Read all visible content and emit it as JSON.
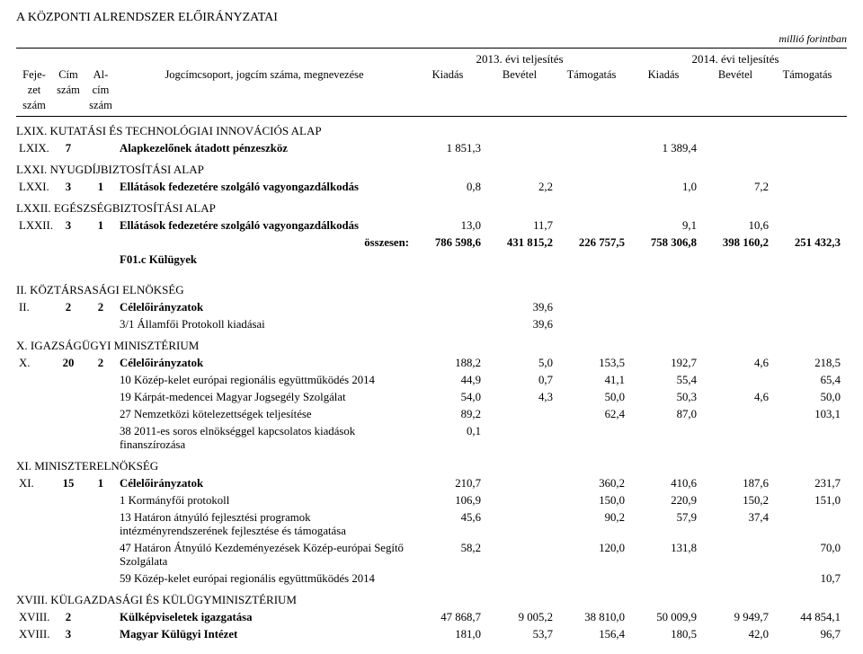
{
  "page_title": "A KÖZPONTI ALRENDSZER ELŐIRÁNYZATAI",
  "unit_label": "millió forintban",
  "header": {
    "col1a": "Feje-",
    "col1b": "zet",
    "col1c": "szám",
    "col2a": "Cím",
    "col2b": "szám",
    "col3a": "Al-",
    "col3b": "cím",
    "col3c": "szám",
    "center": "Jogcímcsoport, jogcím száma, megnevezése",
    "year1": "2013. évi teljesítés",
    "year2": "2014. évi teljesítés",
    "sub_kiadas": "Kiadás",
    "sub_bevetel": "Bevétel",
    "sub_tamogatas": "Támogatás"
  },
  "sections": {
    "lxix": "LXIX. KUTATÁSI ÉS TECHNOLÓGIAI INNOVÁCIÓS ALAP",
    "lxxi": "LXXI. NYUGDÍJBIZTOSÍTÁSI ALAP",
    "lxxii": "LXXII. EGÉSZSÉGBIZTOSÍTÁSI ALAP",
    "ii": "II. KÖZTÁRSASÁGI ELNÖKSÉG",
    "x": "X. IGAZSÁGÜGYI MINISZTÉRIUM",
    "xi": "XI. MINISZTERELNÖKSÉG",
    "xviii": "XVIII. KÜLGAZDASÁGI ÉS KÜLÜGYMINISZTÉRIUM",
    "f01c": "F01.c Külügyek"
  },
  "labels": {
    "osszesen": "összesen:"
  },
  "rows": [
    {
      "c1": "LXIX.",
      "c2": "7",
      "c3": "",
      "name": "Alapkezelőnek átadott pénzeszköz",
      "v": [
        "1 851,3",
        "",
        "",
        "1 389,4",
        "",
        ""
      ],
      "bold": true
    },
    {
      "c1": "LXXI.",
      "c2": "3",
      "c3": "1",
      "name": "Ellátások fedezetére szolgáló vagyongazdálkodás",
      "v": [
        "0,8",
        "2,2",
        "",
        "1,0",
        "7,2",
        ""
      ],
      "bold": true
    },
    {
      "c1": "LXXII.",
      "c2": "3",
      "c3": "1",
      "name": "Ellátások fedezetére szolgáló vagyongazdálkodás",
      "v": [
        "13,0",
        "11,7",
        "",
        "9,1",
        "10,6",
        ""
      ],
      "bold": true
    },
    {
      "c1": "",
      "c2": "",
      "c3": "",
      "name": "",
      "v": [
        "786 598,6",
        "431 815,2",
        "226 757,5",
        "758 306,8",
        "398 160,2",
        "251 432,3"
      ],
      "sum": true
    },
    {
      "c1": "II.",
      "c2": "2",
      "c3": "2",
      "name": "Célelőirányzatok",
      "v": [
        "",
        "39,6",
        "",
        "",
        "",
        ""
      ],
      "bold": true
    },
    {
      "c1": "",
      "c2": "",
      "c3": "",
      "name": "3/1 Államfői Protokoll kiadásai",
      "v": [
        "",
        "39,6",
        "",
        "",
        "",
        ""
      ]
    },
    {
      "c1": "X.",
      "c2": "20",
      "c3": "2",
      "name": "Célelőirányzatok",
      "v": [
        "188,2",
        "5,0",
        "153,5",
        "192,7",
        "4,6",
        "218,5"
      ],
      "bold": true
    },
    {
      "c1": "",
      "c2": "",
      "c3": "",
      "name": "10 Közép-kelet európai regionális együttműködés 2014",
      "v": [
        "44,9",
        "0,7",
        "41,1",
        "55,4",
        "",
        "65,4"
      ]
    },
    {
      "c1": "",
      "c2": "",
      "c3": "",
      "name": "19 Kárpát-medencei Magyar Jogsegély Szolgálat",
      "v": [
        "54,0",
        "4,3",
        "50,0",
        "50,3",
        "4,6",
        "50,0"
      ]
    },
    {
      "c1": "",
      "c2": "",
      "c3": "",
      "name": "27 Nemzetközi kötelezettségek teljesítése",
      "v": [
        "89,2",
        "",
        "62,4",
        "87,0",
        "",
        "103,1"
      ]
    },
    {
      "c1": "",
      "c2": "",
      "c3": "",
      "name": "38 2011-es soros elnökséggel kapcsolatos kiadások finanszírozása",
      "v": [
        "0,1",
        "",
        "",
        "",
        "",
        ""
      ]
    },
    {
      "c1": "XI.",
      "c2": "15",
      "c3": "1",
      "name": "Célelőirányzatok",
      "v": [
        "210,7",
        "",
        "360,2",
        "410,6",
        "187,6",
        "231,7"
      ],
      "bold": true
    },
    {
      "c1": "",
      "c2": "",
      "c3": "",
      "name": "1 Kormányfői protokoll",
      "v": [
        "106,9",
        "",
        "150,0",
        "220,9",
        "150,2",
        "151,0"
      ]
    },
    {
      "c1": "",
      "c2": "",
      "c3": "",
      "name": "13 Határon átnyúló fejlesztési programok intézményrendszerének fejlesztése és támogatása",
      "v": [
        "45,6",
        "",
        "90,2",
        "57,9",
        "37,4",
        ""
      ]
    },
    {
      "c1": "",
      "c2": "",
      "c3": "",
      "name": "47 Határon Átnyúló Kezdeményezések Közép-európai Segítő Szolgálata",
      "v": [
        "58,2",
        "",
        "120,0",
        "131,8",
        "",
        "70,0"
      ]
    },
    {
      "c1": "",
      "c2": "",
      "c3": "",
      "name": "59 Közép-kelet európai regionális együttműködés 2014",
      "v": [
        "",
        "",
        "",
        "",
        "",
        "10,7"
      ]
    },
    {
      "c1": "XVIII.",
      "c2": "2",
      "c3": "",
      "name": "Külképviseletek igazgatása",
      "v": [
        "47 868,7",
        "9 005,2",
        "38 810,0",
        "50 009,9",
        "9 949,7",
        "44 854,1"
      ],
      "bold": true
    },
    {
      "c1": "XVIII.",
      "c2": "3",
      "c3": "",
      "name": "Magyar Külügyi Intézet",
      "v": [
        "181,0",
        "53,7",
        "156,4",
        "180,5",
        "42,0",
        "96,7"
      ],
      "bold": true
    }
  ]
}
